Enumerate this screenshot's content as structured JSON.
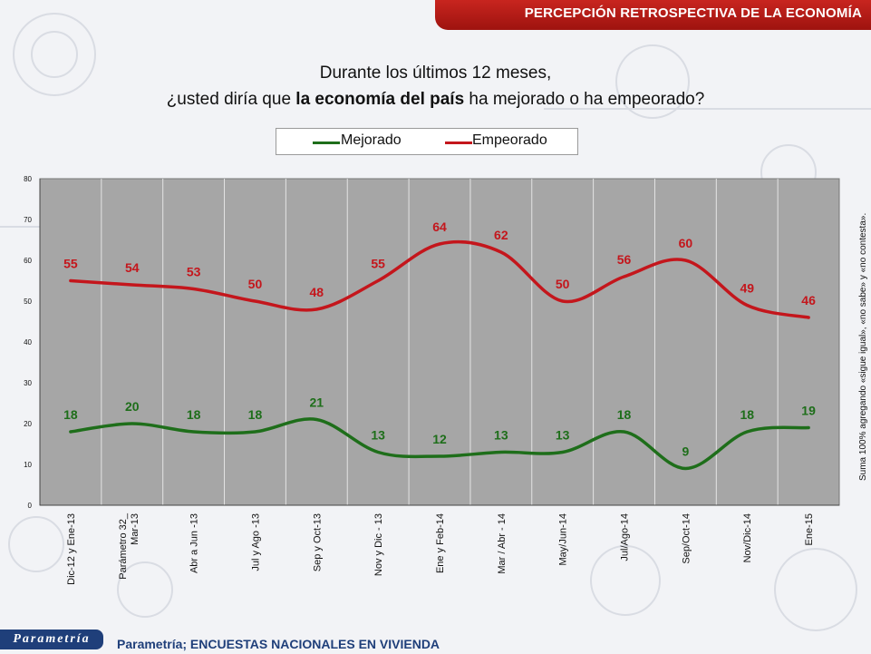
{
  "header": {
    "title": "PERCEPCIÓN RETROSPECTIVA DE LA ECONOMÍA"
  },
  "question": {
    "line1": "Durante los últimos 12 meses,",
    "line2_pre": "¿usted diría que ",
    "line2_bold": "la economía del país",
    "line2_post": " ha mejorado o ha empeorado?"
  },
  "side_note": "Suma 100% agregando «sigue igual», «no sabe» y «no contesta».",
  "footer": {
    "logo": "Parametría",
    "source": "Parametría; ENCUESTAS NACIONALES EN VIVIENDA"
  },
  "colors": {
    "mejorado": "#1e6e1a",
    "empeorado": "#c4161c",
    "plot_bg": "#a6a6a6",
    "header": "#b81c17"
  },
  "chart_data": {
    "type": "line",
    "categories": [
      "Dic-12 y Ene-13",
      "Parámetro 32_ Mar-13",
      "Abr a Jun -13",
      "Jul y Ago -13",
      "Sep y Oct-13",
      "Nov y Dic - 13",
      "Ene y Feb-14",
      "Mar / Abr - 14",
      "May/Jun-14",
      "Jul/Ago-14",
      "Sep/Oct-14",
      "Nov/Dic-14",
      "Ene-15"
    ],
    "series": [
      {
        "name": "Mejorado",
        "color": "#1e6e1a",
        "values": [
          18,
          20,
          18,
          18,
          21,
          13,
          12,
          13,
          13,
          18,
          9,
          18,
          19
        ]
      },
      {
        "name": "Empeorado",
        "color": "#c4161c",
        "values": [
          55,
          54,
          53,
          50,
          48,
          55,
          64,
          62,
          50,
          56,
          60,
          49,
          46
        ]
      }
    ],
    "ylim": [
      0,
      80
    ],
    "yticks": [
      "0",
      "10",
      "20",
      "30",
      "40",
      "50",
      "60",
      "70",
      "80"
    ],
    "legend_position": "top-center",
    "grid": "vertical"
  }
}
